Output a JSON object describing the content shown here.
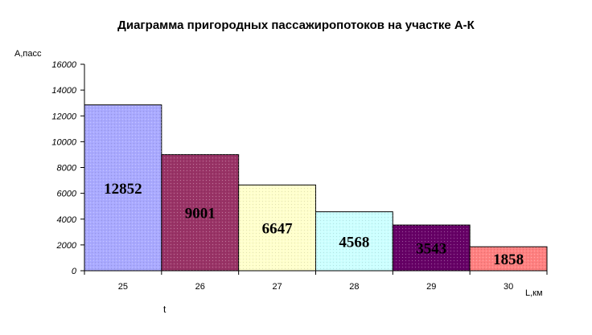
{
  "chart_data": {
    "type": "bar",
    "title": "Диаграмма пригородных пассажиропотоков на участке А-К",
    "ylabel": "А,пасс",
    "xlabel": "L,км",
    "ylim": [
      0,
      16000
    ],
    "yticks": [
      "16000",
      "14000",
      "12000",
      "10000",
      "8000",
      "6000",
      "4000",
      "2000",
      "0"
    ],
    "categories": [
      "25",
      "26",
      "27",
      "28",
      "29",
      "30"
    ],
    "values": [
      12852,
      9001,
      6647,
      4568,
      3543,
      1858
    ],
    "labels": [
      "12852",
      "9001",
      "6647",
      "4568",
      "3543",
      "1858"
    ],
    "colors": [
      "#a9a9ff",
      "#993366",
      "#ffffcc",
      "#ccffff",
      "#660066",
      "#ff8080"
    ],
    "label_colors": [
      "#000000",
      "#000000",
      "#000000",
      "#000000",
      "#000000",
      "#000000"
    ],
    "grid": false,
    "legend": "none"
  },
  "annotation": "t"
}
